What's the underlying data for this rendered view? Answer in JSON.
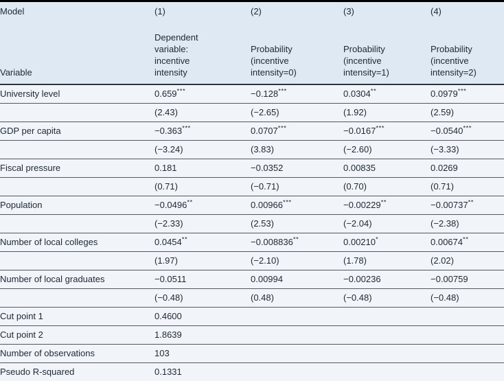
{
  "table": {
    "title_semantics": "ordered-logit regression results table",
    "colors": {
      "header_bg": "#dfe9f3",
      "body_bg": "#f1f5f9",
      "row_separator": "#4d5862",
      "header_separator": "#2a3540",
      "outer_border": "#000000",
      "text": "#1d2733"
    },
    "model_label": "Model",
    "variable_label": "Variable",
    "columns": [
      {
        "id": "(1)",
        "desc": "Dependent\nvariable:\nincentive\nintensity"
      },
      {
        "id": "(2)",
        "desc": "Probability\n(incentive\nintensity=0)"
      },
      {
        "id": "(3)",
        "desc": "Probability\n(incentive\nintensity=1)"
      },
      {
        "id": "(4)",
        "desc": "Probability\n(incentive\nintensity=2)"
      }
    ],
    "rows": [
      {
        "label": "University level",
        "values": [
          "0.659***",
          "−0.128***",
          "0.0304**",
          "0.0979***"
        ]
      },
      {
        "label": "",
        "values": [
          "(2.43)",
          "(−2.65)",
          "(1.92)",
          "(2.59)"
        ]
      },
      {
        "label": "GDP per capita",
        "values": [
          "−0.363***",
          "0.0707***",
          "−0.0167***",
          "−0.0540***"
        ]
      },
      {
        "label": "",
        "values": [
          "(−3.24)",
          "(3.83)",
          "(−2.60)",
          "(−3.33)"
        ]
      },
      {
        "label": "Fiscal pressure",
        "values": [
          "0.181",
          "−0.0352",
          "0.00835",
          "0.0269"
        ]
      },
      {
        "label": "",
        "values": [
          "(0.71)",
          "(−0.71)",
          "(0.70)",
          "(0.71)"
        ]
      },
      {
        "label": "Population",
        "values": [
          "−0.0496**",
          "0.00966***",
          "−0.00229**",
          "−0.00737**"
        ]
      },
      {
        "label": "",
        "values": [
          "(−2.33)",
          "(2.53)",
          "(−2.04)",
          "(−2.38)"
        ]
      },
      {
        "label": "Number of local colleges",
        "values": [
          "0.0454**",
          "−0.008836**",
          "0.00210*",
          "0.00674**"
        ]
      },
      {
        "label": "",
        "values": [
          "(1.97)",
          "(−2.10)",
          "(1.78)",
          "(2.02)"
        ]
      },
      {
        "label": "Number of local graduates",
        "values": [
          "−0.0511",
          "0.00994",
          "−0.00236",
          "−0.00759"
        ]
      },
      {
        "label": "",
        "values": [
          "(−0.48)",
          "(0.48)",
          "(−0.48)",
          "(−0.48)"
        ]
      },
      {
        "label": "Cut point 1",
        "values": [
          "0.4600",
          "",
          "",
          ""
        ]
      },
      {
        "label": "Cut point 2",
        "values": [
          "1.8639",
          "",
          "",
          ""
        ]
      },
      {
        "label": "Number of observations",
        "values": [
          "103",
          "",
          "",
          ""
        ]
      },
      {
        "label": "Pseudo R-squared",
        "values": [
          "0.1331",
          "",
          "",
          ""
        ]
      }
    ]
  }
}
